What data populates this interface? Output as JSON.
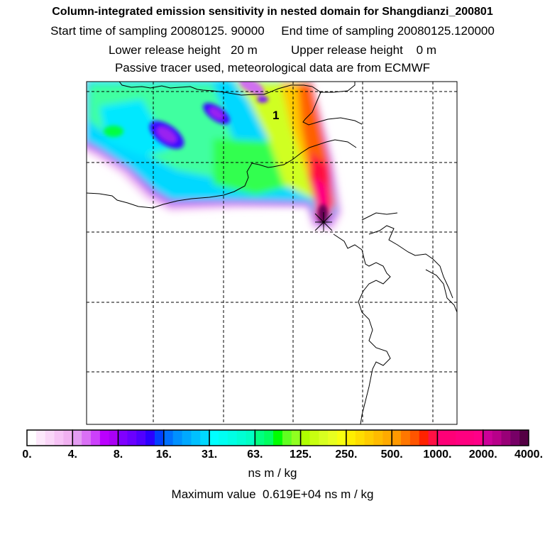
{
  "titles": {
    "line1": "Column-integrated emission sensitivity in nested domain for Shangdianzi_200801",
    "line2": "Start time of sampling 20080125. 90000     End time of sampling 20080125.120000",
    "line3": "Lower release height   20 m          Upper release height    0 m",
    "line4": "Passive tracer used, meteorological data are from ECMWF"
  },
  "map": {
    "release_label": "1",
    "receptor_marker": "star"
  },
  "colorbar": {
    "labels": [
      "0.",
      "4.",
      "8.",
      "16.",
      "31.",
      "63.",
      "125.",
      "250.",
      "500.",
      "1000.",
      "2000.",
      "4000."
    ],
    "colors": [
      [
        "#ffffff",
        "#fde8fb",
        "#fad6f8",
        "#f6c2f5",
        "#f0b0f0"
      ],
      [
        "#e49cf2",
        "#da70f5",
        "#cc40fb",
        "#bb00ff",
        "#aa00f5"
      ],
      [
        "#8000ff",
        "#6a00ff",
        "#5000ff",
        "#2a00ff",
        "#0040ff"
      ],
      [
        "#0070ff",
        "#0090ff",
        "#00a8ff",
        "#00c0ff",
        "#00d8ff"
      ],
      [
        "#00ffff",
        "#00fff2",
        "#00ffe4",
        "#00ffd4",
        "#00ffc4"
      ],
      [
        "#00ff80",
        "#00ff60",
        "#00ff00",
        "#60ff20",
        "#90ff20"
      ],
      [
        "#b0ff00",
        "#c8ff10",
        "#d8ff20",
        "#e8ff20",
        "#f8ff10"
      ],
      [
        "#ffee00",
        "#ffdd00",
        "#ffcc00",
        "#ffbb00",
        "#ffaa00"
      ],
      [
        "#ff9900",
        "#ff7700",
        "#ff5500",
        "#ff2200",
        "#ff1144"
      ],
      [
        "#ff0077",
        "#ff0077",
        "#ff0080",
        "#ff0080",
        "#ff0088"
      ],
      [
        "#cc0099",
        "#b8008a",
        "#990077",
        "#770066",
        "#550044"
      ]
    ],
    "unit": "ns m / kg"
  },
  "maximum": "Maximum value  0.619E+04 ns m / kg"
}
